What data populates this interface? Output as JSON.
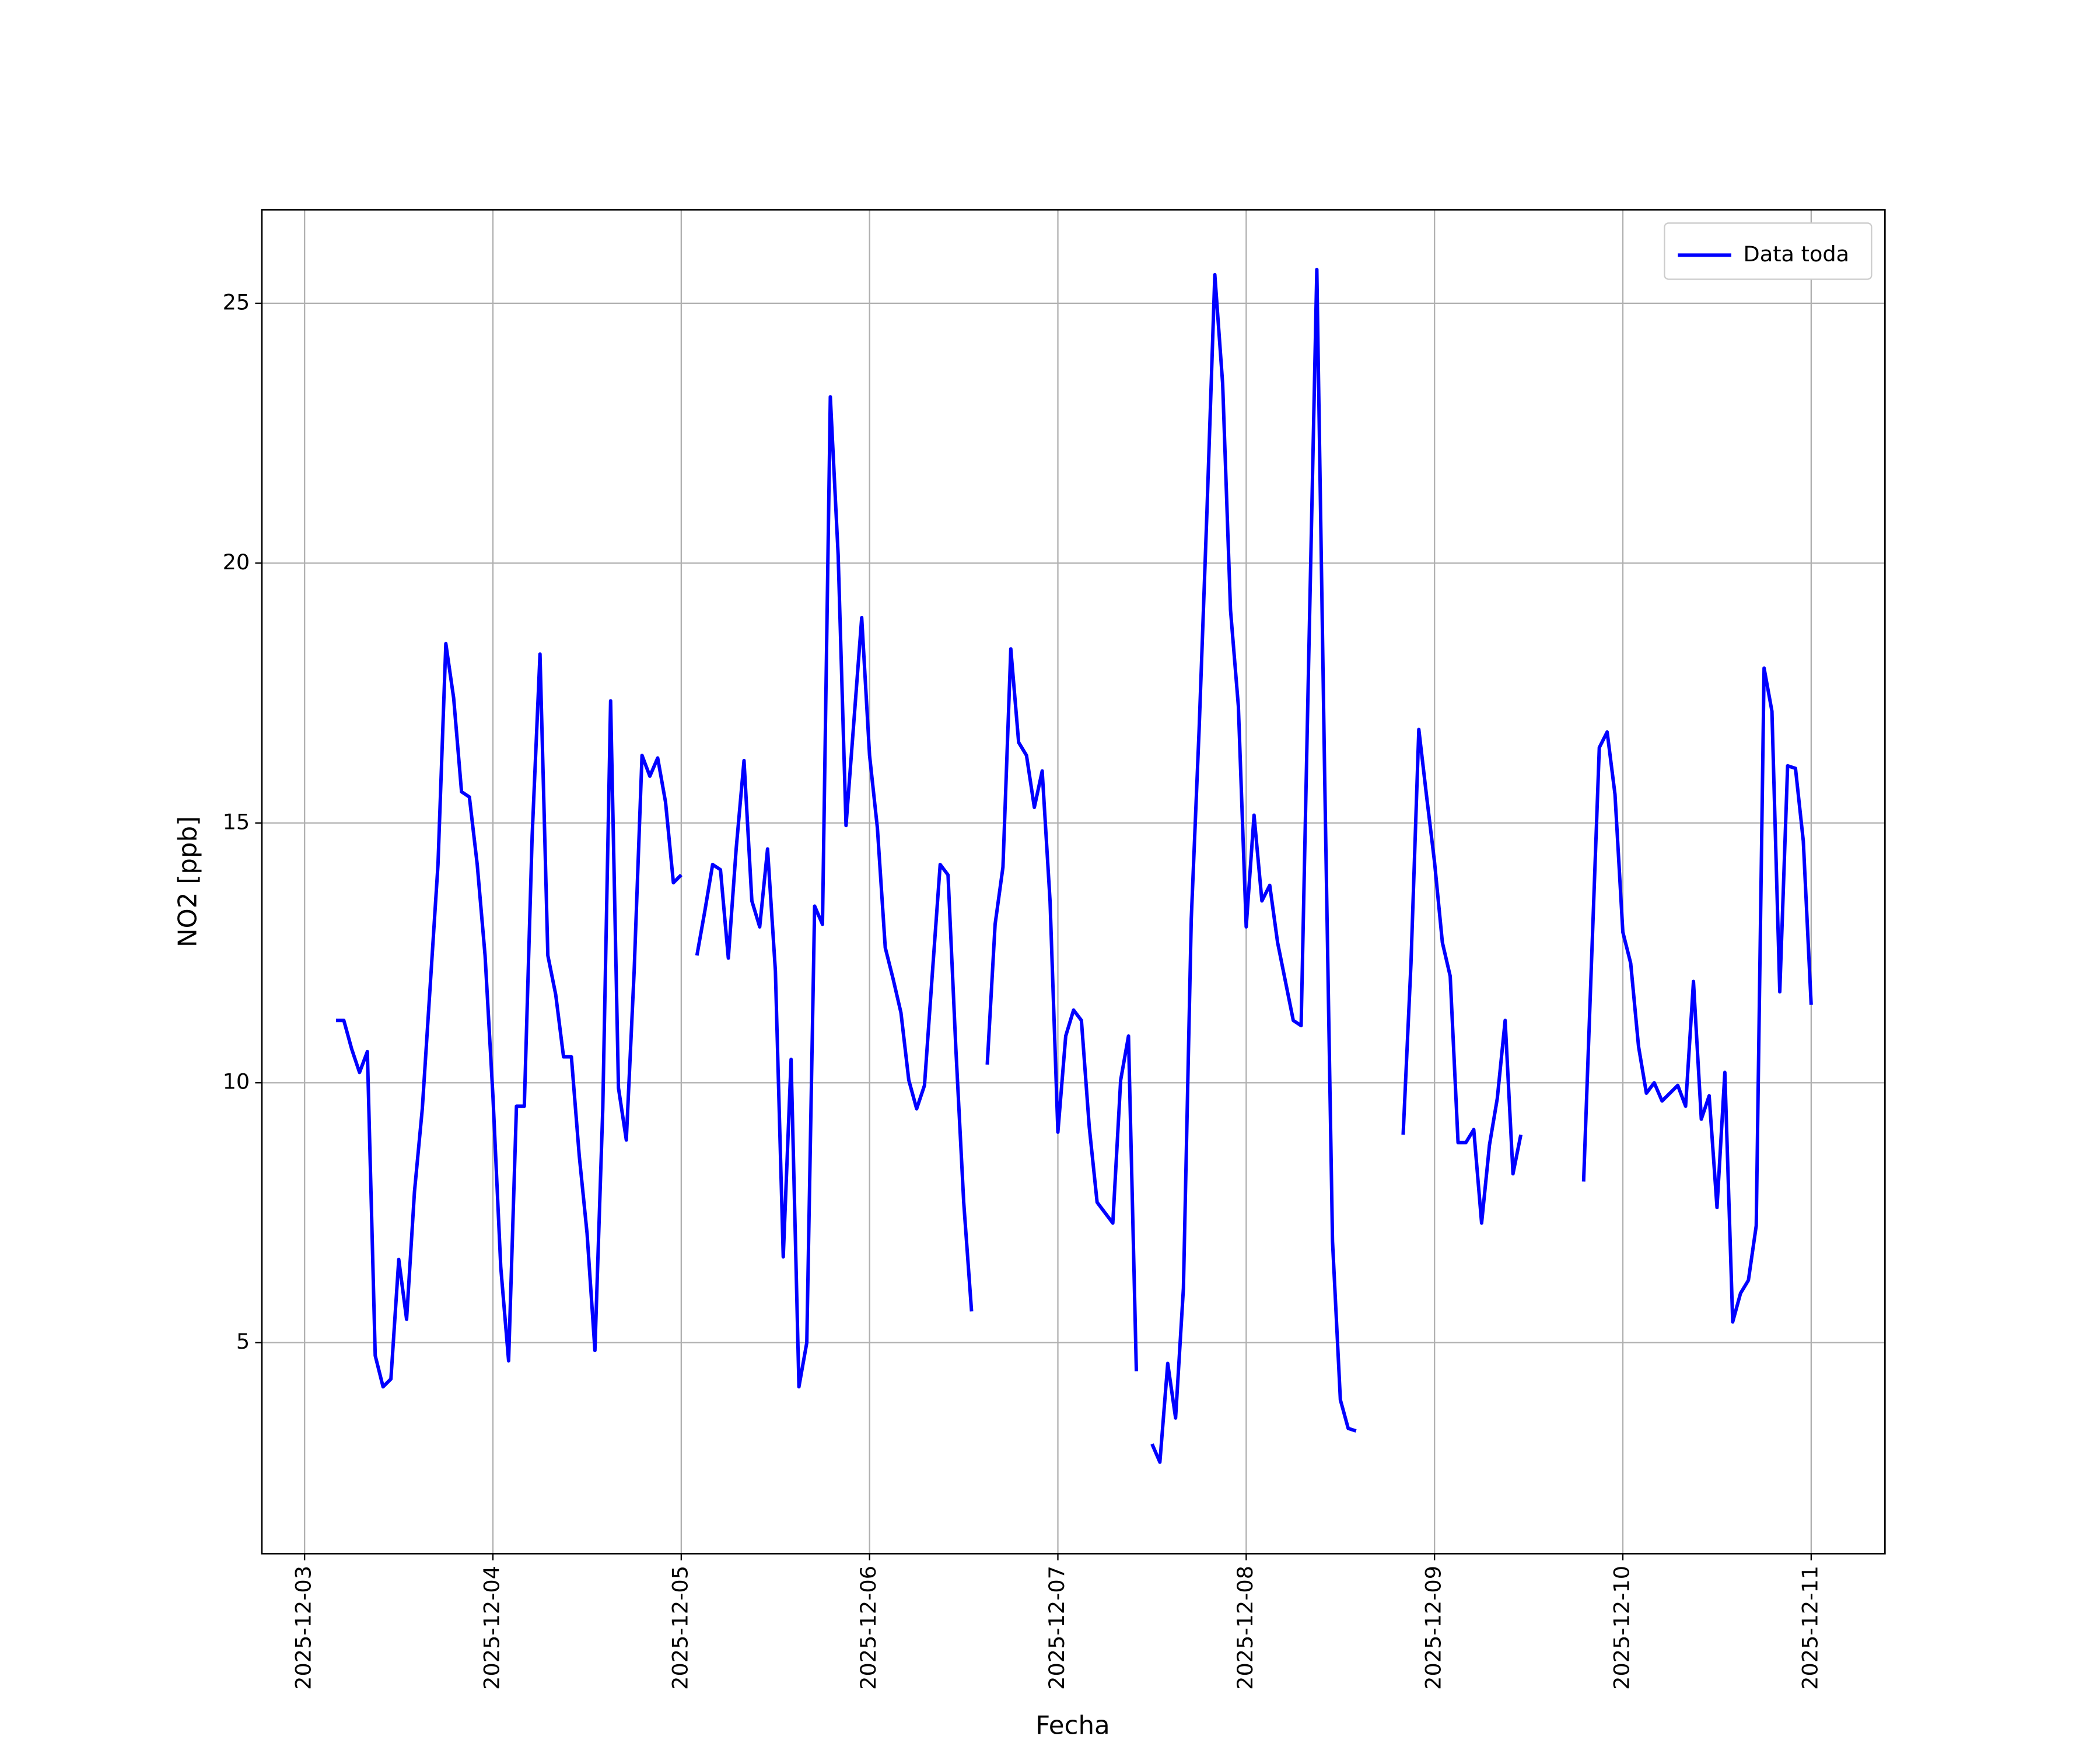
{
  "chart_data": {
    "type": "line",
    "xlabel": "Fecha",
    "ylabel": "NO2 [ppb]",
    "x": [
      4,
      5,
      6,
      7,
      8,
      9,
      10,
      11,
      12,
      13,
      14,
      15,
      16,
      17,
      18,
      19,
      20,
      21,
      22,
      23,
      24,
      25,
      26,
      27,
      28,
      29,
      30,
      31,
      32,
      33,
      34,
      35,
      36,
      37,
      38,
      39,
      40,
      41,
      42,
      43,
      44,
      45,
      46,
      47,
      48,
      49,
      50,
      51,
      52,
      53,
      54,
      55,
      56,
      57,
      58,
      59,
      60,
      61,
      62,
      63,
      64,
      65,
      66,
      67,
      68,
      69,
      70,
      71,
      72,
      73,
      74,
      75,
      76,
      77,
      78,
      79,
      80,
      81,
      82,
      83,
      84,
      85,
      86,
      87,
      88,
      89,
      90,
      91,
      92,
      93,
      94,
      95,
      96,
      97,
      98,
      99,
      100,
      101,
      102,
      103,
      104,
      105,
      106,
      107,
      108,
      109,
      110,
      111,
      112,
      113,
      114,
      115,
      116,
      117,
      118,
      119,
      120,
      121,
      122,
      123,
      124,
      125,
      126,
      127,
      128,
      129,
      130,
      131,
      132,
      133,
      134,
      135,
      136,
      137,
      138,
      139,
      140,
      141,
      142,
      143,
      144,
      145,
      146,
      147,
      148,
      149,
      150,
      151,
      152,
      153,
      154,
      155,
      156,
      157,
      158,
      159,
      160,
      161,
      162,
      163,
      164,
      165,
      166,
      167,
      168,
      169,
      170,
      171,
      172,
      173,
      174,
      175,
      176,
      177,
      178,
      179,
      180,
      181,
      182,
      183,
      184,
      185,
      186,
      187,
      188,
      189,
      190,
      191,
      192
    ],
    "series": [
      {
        "name": "Data toda",
        "color": "#0000ff",
        "values": [
          11.2,
          11.2,
          10.65,
          10.2,
          10.6,
          4.75,
          4.15,
          4.3,
          6.6,
          5.45,
          7.9,
          9.5,
          11.85,
          14.2,
          18.45,
          17.4,
          15.6,
          15.5,
          14.2,
          12.45,
          9.75,
          6.45,
          4.65,
          9.55,
          9.55,
          14.75,
          18.25,
          12.45,
          11.7,
          10.5,
          10.5,
          8.6,
          7.1,
          4.85,
          9.5,
          17.35,
          9.9,
          8.9,
          12.15,
          16.3,
          15.9,
          16.25,
          15.4,
          13.85,
          14.0,
          null,
          12.45,
          13.3,
          14.2,
          14.1,
          12.4,
          14.5,
          16.2,
          13.5,
          13.0,
          14.5,
          12.15,
          6.65,
          10.45,
          4.15,
          5.0,
          13.4,
          13.05,
          23.2,
          20.15,
          14.95,
          16.95,
          18.95,
          16.3,
          14.9,
          12.6,
          12.0,
          11.35,
          10.05,
          9.5,
          9.95,
          12.1,
          14.2,
          14.0,
          10.65,
          7.7,
          5.6,
          null,
          10.35,
          13.05,
          14.15,
          18.35,
          16.55,
          16.3,
          15.3,
          16.0,
          13.5,
          9.05,
          10.9,
          11.4,
          11.2,
          9.15,
          7.7,
          7.5,
          7.3,
          10.05,
          10.9,
          4.45,
          null,
          3.05,
          2.7,
          4.6,
          3.55,
          6.05,
          13.15,
          16.8,
          21.0,
          25.55,
          23.45,
          19.1,
          17.25,
          13.0,
          15.15,
          13.5,
          13.8,
          12.7,
          11.95,
          11.2,
          11.1,
          18.4,
          25.65,
          15.9,
          6.95,
          3.9,
          3.35,
          3.3,
          null,
          null,
          null,
          null,
          null,
          9.0,
          12.3,
          16.8,
          15.5,
          14.25,
          12.7,
          12.05,
          8.85,
          8.85,
          9.1,
          7.3,
          8.8,
          9.7,
          11.2,
          8.25,
          9.0,
          null,
          null,
          null,
          null,
          null,
          null,
          null,
          8.1,
          12.3,
          16.45,
          16.75,
          15.55,
          12.9,
          12.3,
          10.7,
          9.8,
          10.0,
          9.65,
          9.8,
          9.95,
          9.55,
          11.95,
          9.3,
          9.75,
          7.6,
          10.2,
          5.4,
          5.95,
          6.2,
          7.25,
          17.98,
          17.15,
          11.75,
          16.1,
          16.05,
          14.65,
          11.5
        ]
      }
    ],
    "xlim": [
      -5.45,
      201.4
    ],
    "xticks": [
      {
        "value": 0,
        "label": "2025-12-03"
      },
      {
        "value": 24,
        "label": "2025-12-04"
      },
      {
        "value": 48,
        "label": "2025-12-05"
      },
      {
        "value": 72,
        "label": "2025-12-06"
      },
      {
        "value": 96,
        "label": "2025-12-07"
      },
      {
        "value": 120,
        "label": "2025-12-08"
      },
      {
        "value": 144,
        "label": "2025-12-09"
      },
      {
        "value": 168,
        "label": "2025-12-10"
      },
      {
        "value": 192,
        "label": "2025-12-11"
      }
    ],
    "ylim": [
      0.94,
      26.8
    ],
    "yticks": [
      5,
      10,
      15,
      20,
      25
    ],
    "grid": true,
    "legend": "upper right"
  }
}
